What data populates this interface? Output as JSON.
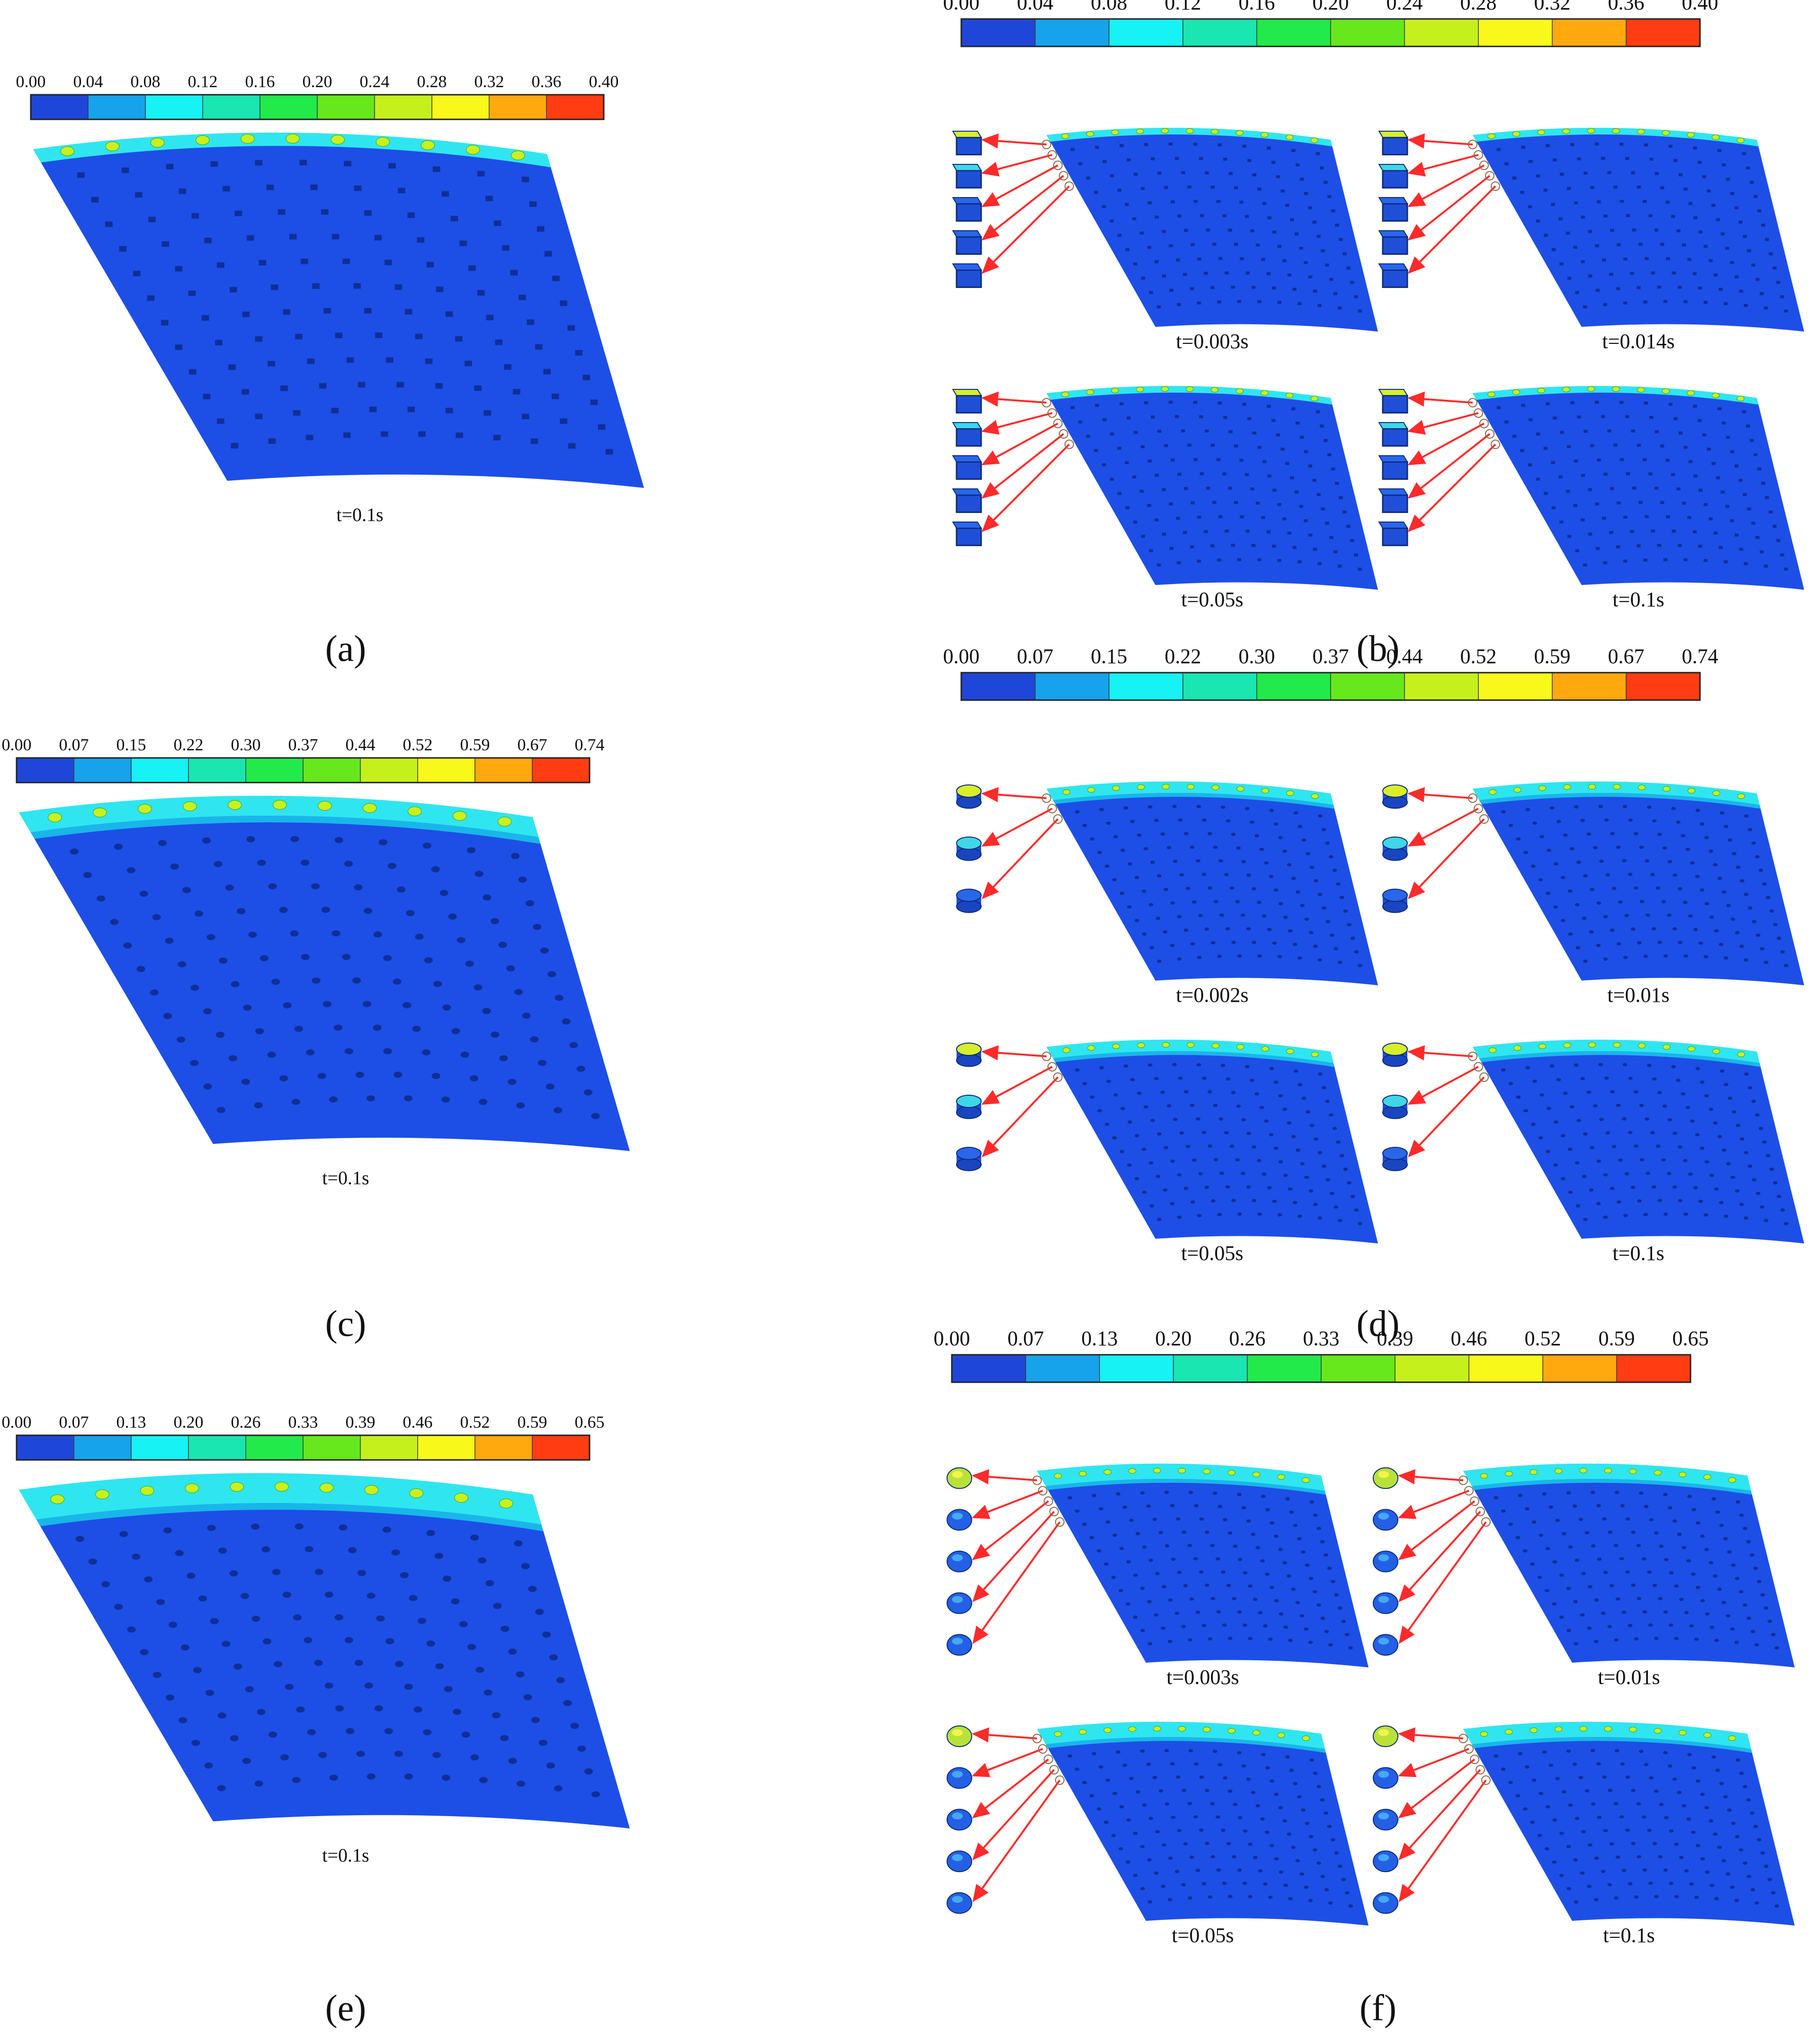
{
  "figure": {
    "colors": {
      "plate": "#1d4fe6",
      "plate_shadow": "#1538b8",
      "band_top": "#2fe6f0",
      "band_mid": "#19b6ea",
      "pit": "#0f2f98",
      "arrow": "#ff2a2a",
      "scale": [
        "#1e47d9",
        "#16a3ec",
        "#17f2f4",
        "#19e6b0",
        "#22ea4a",
        "#66e81c",
        "#c6f01c",
        "#f8f81a",
        "#ffa90f",
        "#ff3c12"
      ]
    },
    "panels": [
      {
        "id": "a",
        "label": "(a)",
        "scale_ticks": [
          "0.00",
          "0.04",
          "0.08",
          "0.12",
          "0.16",
          "0.20",
          "0.24",
          "0.28",
          "0.32",
          "0.36",
          "0.40"
        ],
        "frames": [
          {
            "time": "t=0.1s"
          }
        ]
      },
      {
        "id": "b",
        "label": "(b)",
        "cell_shape": "square",
        "scale_ticks": [
          "0.00",
          "0.04",
          "0.08",
          "0.12",
          "0.16",
          "0.20",
          "0.24",
          "0.28",
          "0.32",
          "0.36",
          "0.40"
        ],
        "frames": [
          {
            "time": "t=0.003s"
          },
          {
            "time": "t=0.014s"
          },
          {
            "time": "t=0.05s"
          },
          {
            "time": "t=0.1s"
          }
        ]
      },
      {
        "id": "c",
        "label": "(c)",
        "scale_ticks": [
          "0.00",
          "0.07",
          "0.15",
          "0.22",
          "0.30",
          "0.37",
          "0.44",
          "0.52",
          "0.59",
          "0.67",
          "0.74"
        ],
        "frames": [
          {
            "time": "t=0.1s"
          }
        ]
      },
      {
        "id": "d",
        "label": "(d)",
        "cell_shape": "cylinder",
        "scale_ticks": [
          "0.00",
          "0.07",
          "0.15",
          "0.22",
          "0.30",
          "0.37",
          "0.44",
          "0.52",
          "0.59",
          "0.67",
          "0.74"
        ],
        "frames": [
          {
            "time": "t=0.002s"
          },
          {
            "time": "t=0.01s"
          },
          {
            "time": "t=0.05s"
          },
          {
            "time": "t=0.1s"
          }
        ]
      },
      {
        "id": "e",
        "label": "(e)",
        "scale_ticks": [
          "0.00",
          "0.07",
          "0.13",
          "0.20",
          "0.26",
          "0.33",
          "0.39",
          "0.46",
          "0.52",
          "0.59",
          "0.65"
        ],
        "frames": [
          {
            "time": "t=0.1s"
          }
        ]
      },
      {
        "id": "f",
        "label": "(f)",
        "cell_shape": "dome",
        "scale_ticks": [
          "0.00",
          "0.07",
          "0.13",
          "0.20",
          "0.26",
          "0.33",
          "0.39",
          "0.46",
          "0.52",
          "0.59",
          "0.65"
        ],
        "frames": [
          {
            "time": "t=0.003s"
          },
          {
            "time": "t=0.01s"
          },
          {
            "time": "t=0.05s"
          },
          {
            "time": "t=0.1s"
          }
        ]
      }
    ]
  }
}
